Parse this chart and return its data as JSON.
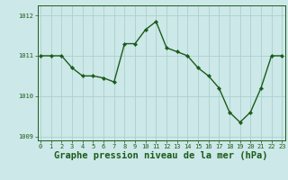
{
  "x": [
    0,
    1,
    2,
    3,
    4,
    5,
    6,
    7,
    8,
    9,
    10,
    11,
    12,
    13,
    14,
    15,
    16,
    17,
    18,
    19,
    20,
    21,
    22,
    23
  ],
  "y": [
    1011.0,
    1011.0,
    1011.0,
    1010.7,
    1010.5,
    1010.5,
    1010.45,
    1010.35,
    1011.3,
    1011.3,
    1011.65,
    1011.85,
    1011.2,
    1011.1,
    1011.0,
    1010.7,
    1010.5,
    1010.2,
    1009.6,
    1009.35,
    1009.6,
    1010.2,
    1011.0,
    1011.0
  ],
  "line_color": "#1a5c1a",
  "marker": "D",
  "marker_size": 2.2,
  "bg_color": "#cde8e8",
  "grid_color": "#aacfcf",
  "xlabel": "Graphe pression niveau de la mer (hPa)",
  "xlabel_fontsize": 7.5,
  "xlabel_color": "#1a5c1a",
  "ylim": [
    1008.9,
    1012.25
  ],
  "yticks": [
    1009,
    1010,
    1011,
    1012
  ],
  "xticks": [
    0,
    1,
    2,
    3,
    4,
    5,
    6,
    7,
    8,
    9,
    10,
    11,
    12,
    13,
    14,
    15,
    16,
    17,
    18,
    19,
    20,
    21,
    22,
    23
  ],
  "tick_color": "#1a5c1a",
  "tick_fontsize": 5.0,
  "line_width": 1.0,
  "spine_color": "#1a5c1a",
  "xlim": [
    -0.3,
    23.3
  ]
}
